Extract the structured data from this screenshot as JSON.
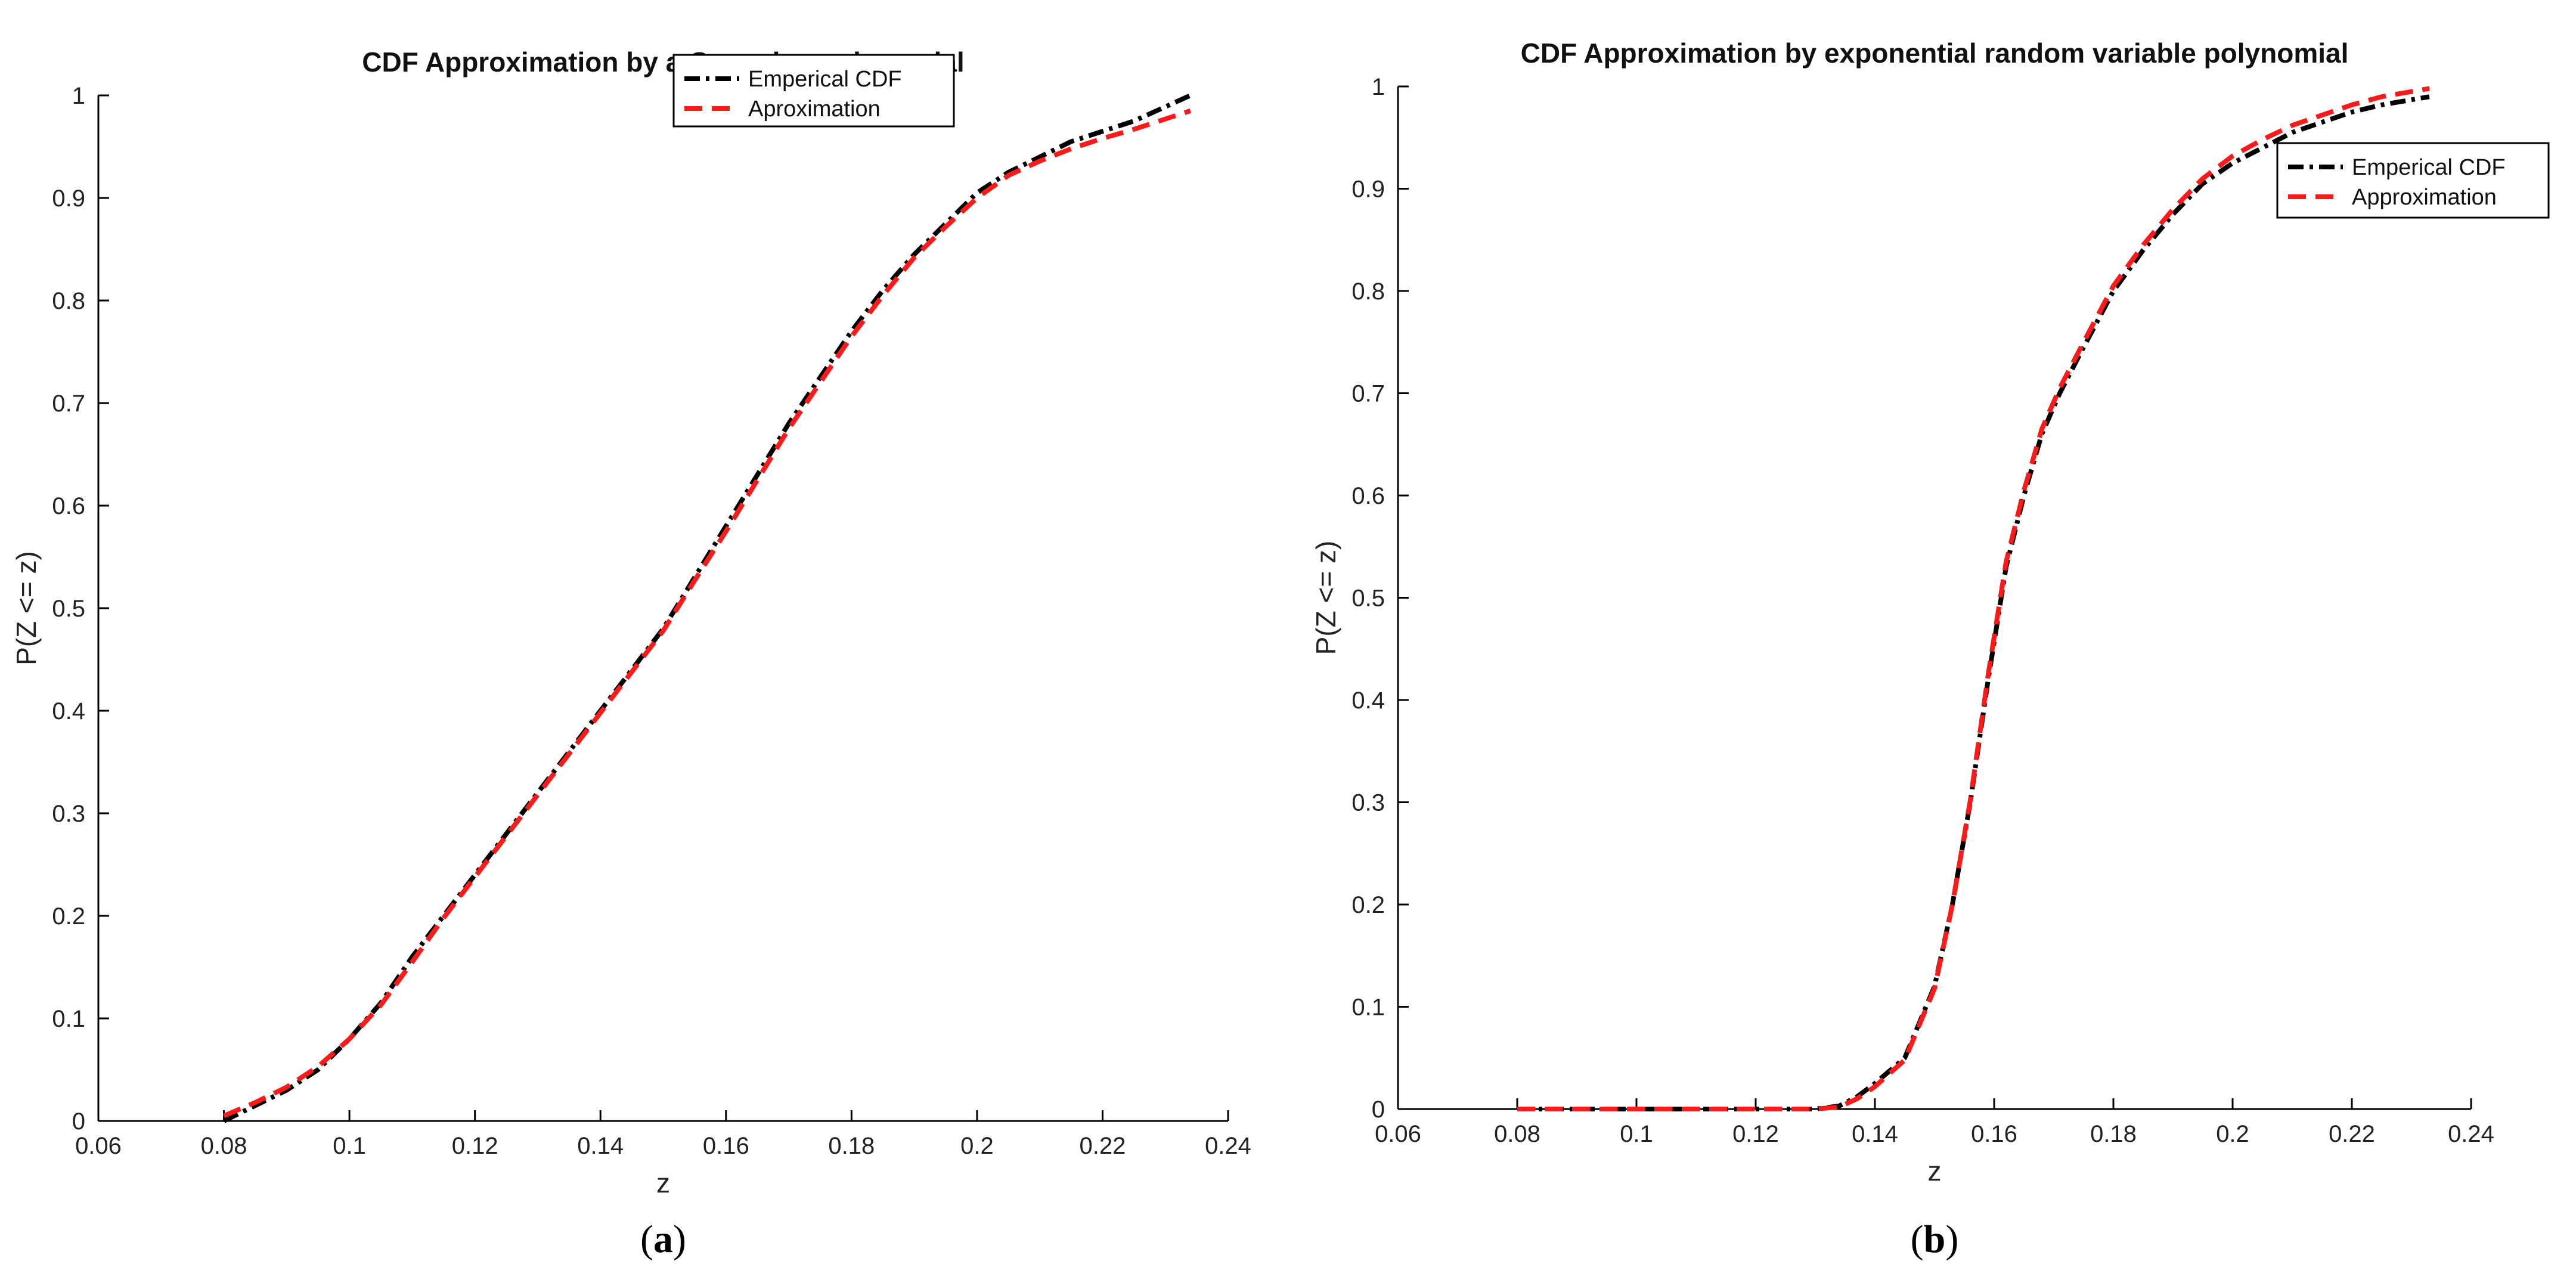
{
  "chart_data": [
    {
      "type": "line",
      "title": "CDF Approximation by a Gaussian polynomial",
      "xlabel": "z",
      "ylabel": "P(Z <= z)",
      "xlim": [
        0.06,
        0.24
      ],
      "ylim": [
        0,
        1
      ],
      "xticks": [
        0.06,
        0.08,
        0.1,
        0.12,
        0.14,
        0.16,
        0.18,
        0.2,
        0.22,
        0.24
      ],
      "xtick_labels": [
        "0.06",
        "0.08",
        "0.1",
        "0.12",
        "0.14",
        "0.16",
        "0.18",
        "0.2",
        "0.22",
        "0.24"
      ],
      "yticks": [
        0,
        0.1,
        0.2,
        0.3,
        0.4,
        0.5,
        0.6,
        0.7,
        0.8,
        0.9,
        1
      ],
      "ytick_labels": [
        "0",
        "0.1",
        "0.2",
        "0.3",
        "0.4",
        "0.5",
        "0.6",
        "0.7",
        "0.8",
        "0.9",
        "1"
      ],
      "legend_position": "top-right",
      "caption": {
        "open": "(",
        "letter": "a",
        "close": ")"
      },
      "series": [
        {
          "name": "Emperical CDF",
          "style": "dash-dot",
          "color": "#000000",
          "x": [
            0.08,
            0.085,
            0.09,
            0.095,
            0.1,
            0.105,
            0.11,
            0.115,
            0.12,
            0.125,
            0.13,
            0.135,
            0.14,
            0.145,
            0.15,
            0.155,
            0.16,
            0.165,
            0.17,
            0.175,
            0.18,
            0.185,
            0.19,
            0.195,
            0.2,
            0.205,
            0.21,
            0.215,
            0.22,
            0.225,
            0.234
          ],
          "y": [
            0.0,
            0.015,
            0.03,
            0.05,
            0.08,
            0.115,
            0.16,
            0.2,
            0.24,
            0.28,
            0.32,
            0.36,
            0.4,
            0.44,
            0.48,
            0.53,
            0.58,
            0.63,
            0.68,
            0.725,
            0.77,
            0.81,
            0.845,
            0.875,
            0.905,
            0.925,
            0.94,
            0.955,
            0.965,
            0.975,
            1.0
          ]
        },
        {
          "name": "Aproximation",
          "style": "dashed",
          "color": "#ff1a1a",
          "x": [
            0.08,
            0.085,
            0.09,
            0.095,
            0.1,
            0.105,
            0.11,
            0.115,
            0.12,
            0.125,
            0.13,
            0.135,
            0.14,
            0.145,
            0.15,
            0.155,
            0.16,
            0.165,
            0.17,
            0.175,
            0.18,
            0.185,
            0.19,
            0.195,
            0.2,
            0.205,
            0.21,
            0.215,
            0.22,
            0.225,
            0.234
          ],
          "y": [
            0.005,
            0.018,
            0.033,
            0.053,
            0.08,
            0.113,
            0.155,
            0.198,
            0.238,
            0.278,
            0.318,
            0.358,
            0.398,
            0.438,
            0.478,
            0.527,
            0.575,
            0.625,
            0.675,
            0.72,
            0.765,
            0.805,
            0.842,
            0.872,
            0.9,
            0.922,
            0.936,
            0.948,
            0.958,
            0.967,
            0.985
          ]
        }
      ]
    },
    {
      "type": "line",
      "title": "CDF Approximation by exponential random variable polynomial",
      "xlabel": "z",
      "ylabel": "P(Z <= z)",
      "xlim": [
        0.06,
        0.24
      ],
      "ylim": [
        0,
        1
      ],
      "xticks": [
        0.06,
        0.08,
        0.1,
        0.12,
        0.14,
        0.16,
        0.18,
        0.2,
        0.22,
        0.24
      ],
      "xtick_labels": [
        "0.06",
        "0.08",
        "0.1",
        "0.12",
        "0.14",
        "0.16",
        "0.18",
        "0.2",
        "0.22",
        "0.24"
      ],
      "yticks": [
        0,
        0.1,
        0.2,
        0.3,
        0.4,
        0.5,
        0.6,
        0.7,
        0.8,
        0.9,
        1
      ],
      "ytick_labels": [
        "0",
        "0.1",
        "0.2",
        "0.3",
        "0.4",
        "0.5",
        "0.6",
        "0.7",
        "0.8",
        "0.9",
        "1"
      ],
      "legend_position": "top-right",
      "caption": {
        "open": "(",
        "letter": "b",
        "close": ")"
      },
      "series": [
        {
          "name": "Emperical CDF",
          "style": "dash-dot",
          "color": "#000000",
          "x": [
            0.08,
            0.09,
            0.1,
            0.11,
            0.12,
            0.13,
            0.134,
            0.137,
            0.14,
            0.145,
            0.15,
            0.153,
            0.156,
            0.159,
            0.162,
            0.165,
            0.168,
            0.171,
            0.175,
            0.18,
            0.185,
            0.19,
            0.195,
            0.2,
            0.205,
            0.21,
            0.215,
            0.22,
            0.225,
            0.233
          ],
          "y": [
            0,
            0,
            0,
            0,
            0,
            0,
            0.003,
            0.012,
            0.025,
            0.05,
            0.12,
            0.2,
            0.3,
            0.42,
            0.53,
            0.6,
            0.66,
            0.7,
            0.745,
            0.8,
            0.84,
            0.875,
            0.905,
            0.925,
            0.94,
            0.955,
            0.965,
            0.975,
            0.982,
            0.99
          ]
        },
        {
          "name": "Approximation",
          "style": "dashed",
          "color": "#ff1a1a",
          "x": [
            0.08,
            0.09,
            0.1,
            0.11,
            0.12,
            0.13,
            0.134,
            0.137,
            0.14,
            0.145,
            0.15,
            0.153,
            0.156,
            0.159,
            0.162,
            0.165,
            0.168,
            0.171,
            0.175,
            0.18,
            0.185,
            0.19,
            0.195,
            0.2,
            0.205,
            0.21,
            0.215,
            0.22,
            0.225,
            0.233
          ],
          "y": [
            0,
            0,
            0,
            0,
            0,
            0,
            0.002,
            0.01,
            0.022,
            0.048,
            0.118,
            0.2,
            0.302,
            0.425,
            0.535,
            0.605,
            0.665,
            0.705,
            0.75,
            0.805,
            0.845,
            0.88,
            0.91,
            0.932,
            0.948,
            0.962,
            0.972,
            0.982,
            0.99,
            0.998
          ]
        }
      ]
    }
  ]
}
